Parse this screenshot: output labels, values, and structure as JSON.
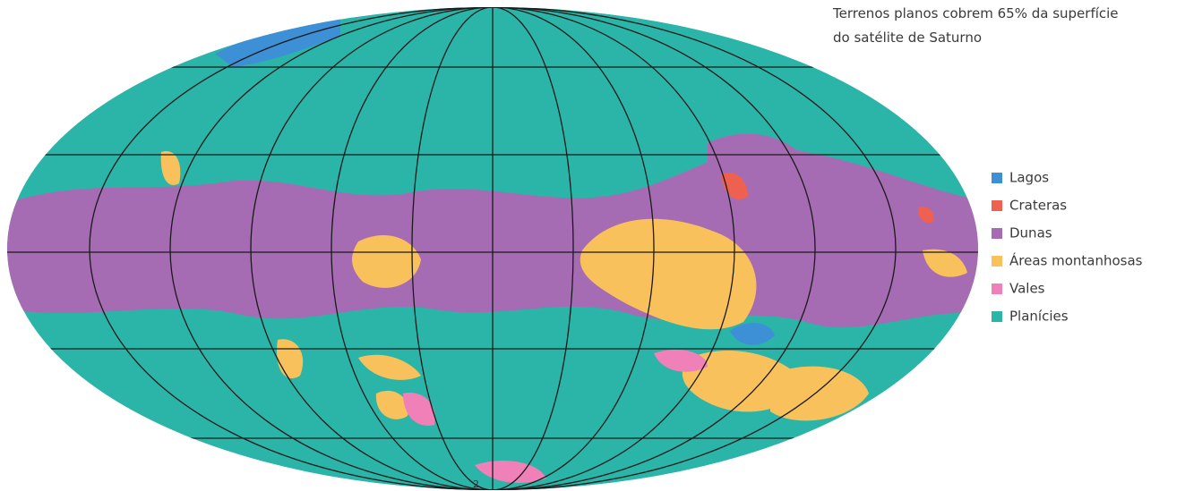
{
  "title_lines": [
    "Terrenos planos cobrem 65% da superfície",
    "do satélite de Saturno"
  ],
  "legend": [
    {
      "label": "Lagos",
      "color": "#3d8fd6"
    },
    {
      "label": "Crateras",
      "color": "#ee6150"
    },
    {
      "label": "Dunas",
      "color": "#a56cb3"
    },
    {
      "label": "Áreas montanhosas",
      "color": "#f9c15c"
    },
    {
      "label": "Vales",
      "color": "#ef80b8"
    },
    {
      "label": "Planícies",
      "color": "#2bb5a8"
    }
  ],
  "page_mark": "2"
}
